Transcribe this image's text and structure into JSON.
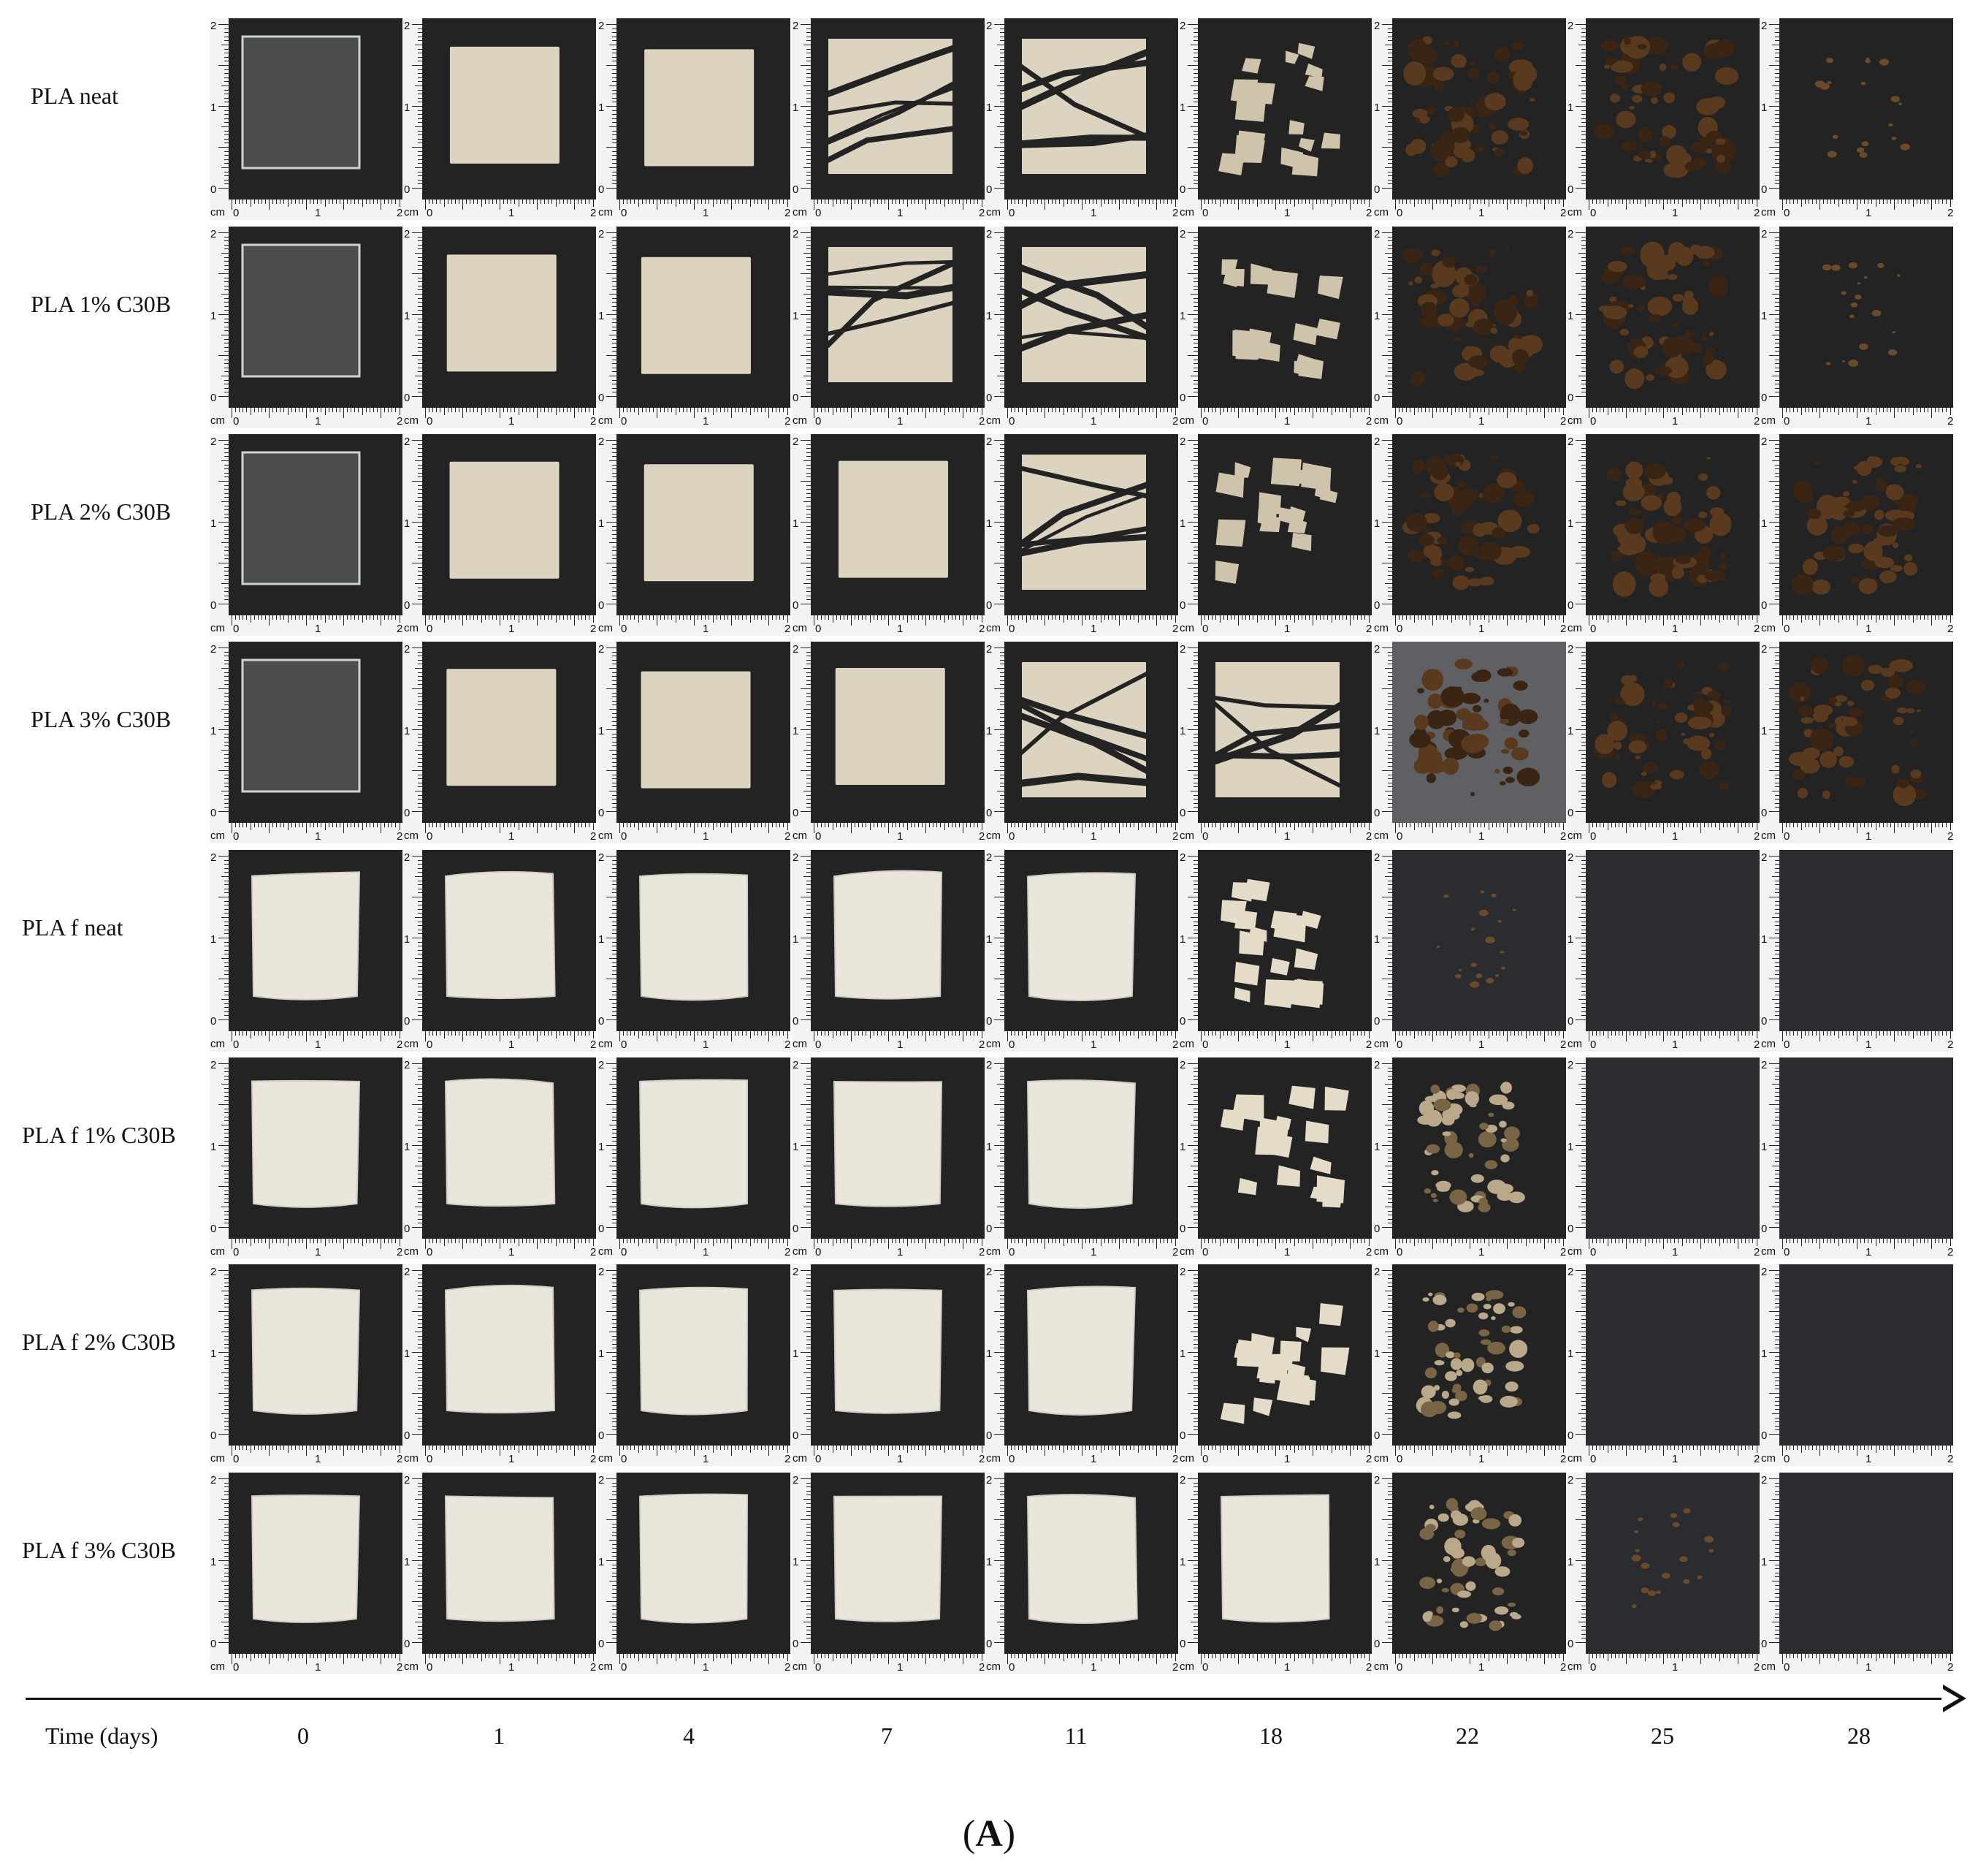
{
  "row_labels": [
    "PLA neat",
    "PLA 1% C30B",
    "PLA 2% C30B",
    "PLA 3% C30B",
    "PLA f neat",
    "PLA f 1% C30B",
    "PLA f 2% C30B",
    "PLA f 3% C30B"
  ],
  "time_axis": {
    "title": "Time (days)",
    "values": [
      "0",
      "1",
      "4",
      "7",
      "11",
      "18",
      "22",
      "25",
      "28"
    ]
  },
  "ruler": {
    "unit": "cm",
    "marks": [
      "0",
      "1",
      "2"
    ]
  },
  "panel_label": {
    "open": "(",
    "letter": "A",
    "close": ")"
  },
  "colors": {
    "background": "#232323",
    "ruler": "#f3f3f3",
    "transparent_film": "#4a4c4d",
    "white_film": "#ebe6dc",
    "beige_film": "#dcd3c0",
    "debris": "#3a2414"
  }
}
